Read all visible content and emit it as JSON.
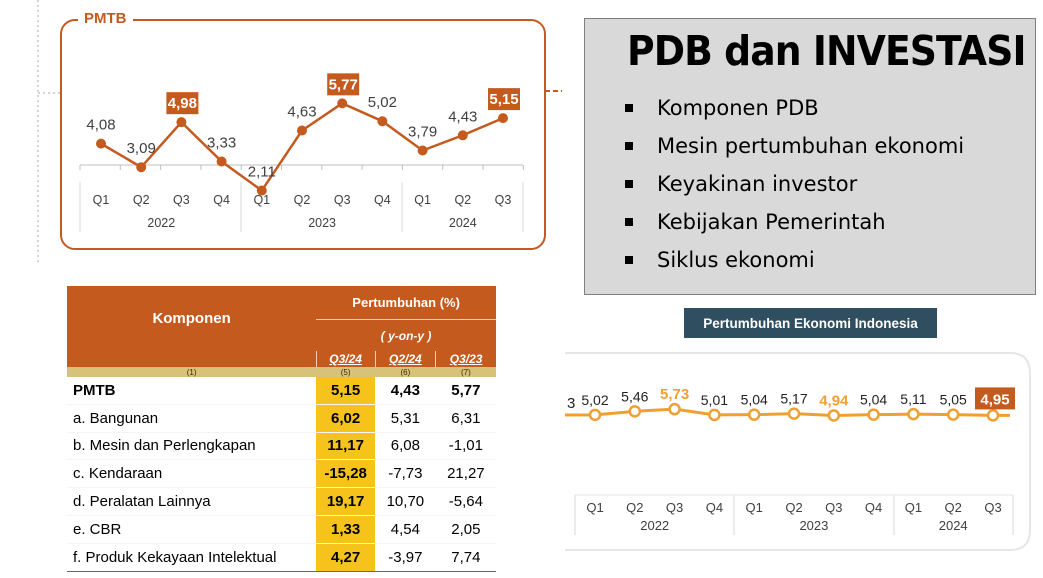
{
  "slide": {
    "title": "PDB dan INVESTASI",
    "bullets": [
      "Komponen PDB",
      "Mesin pertumbuhan ekonomi",
      "Keyakinan investor",
      "Kebijakan Pemerintah",
      "Siklus ekonomi"
    ]
  },
  "colors": {
    "orange": "#c55a1f",
    "growth_orange": "#f0a030",
    "highlight_yellow": "#f6c21c",
    "badge_navy": "#2f4e5f"
  },
  "chart_data": [
    {
      "type": "line",
      "title": "PMTB",
      "categories": [
        "Q1",
        "Q2",
        "Q3",
        "Q4",
        "Q1",
        "Q2",
        "Q3",
        "Q4",
        "Q1",
        "Q2",
        "Q3"
      ],
      "year_groups": [
        {
          "label": "2022",
          "count": 4
        },
        {
          "label": "2023",
          "count": 4
        },
        {
          "label": "2024",
          "count": 3
        }
      ],
      "series": [
        {
          "values": [
            4.08,
            3.09,
            4.98,
            3.33,
            2.11,
            4.63,
            5.77,
            5.02,
            3.79,
            4.43,
            5.15
          ]
        }
      ],
      "labels": [
        "4,08",
        "3,09",
        "4,98",
        "3,33",
        "2,11",
        "4,63",
        "5,77",
        "5,02",
        "3,79",
        "4,43",
        "5,15"
      ],
      "highlighted": [
        2,
        6,
        10
      ]
    },
    {
      "type": "line",
      "title": "Pertumbuhan Ekonomi Indonesia",
      "categories": [
        "Q1",
        "Q2",
        "Q3",
        "Q4",
        "Q1",
        "Q2",
        "Q3",
        "Q4",
        "Q1",
        "Q2",
        "Q3"
      ],
      "year_groups": [
        {
          "label": "2022",
          "count": 4
        },
        {
          "label": "2023",
          "count": 4
        },
        {
          "label": "2024",
          "count": 3
        }
      ],
      "series": [
        {
          "values": [
            5.02,
            5.46,
            5.73,
            5.01,
            5.04,
            5.17,
            4.94,
            5.04,
            5.11,
            5.05,
            4.95
          ]
        }
      ],
      "labels": [
        "5,02",
        "5,46",
        "5,73",
        "5,01",
        "5,04",
        "5,17",
        "4,94",
        "5,04",
        "5,11",
        "5,05",
        "4,95"
      ],
      "cut_off_label": "3",
      "highlighted_text": [
        2,
        6
      ],
      "boxed": [
        10
      ]
    },
    {
      "type": "table",
      "header": {
        "component": "Komponen",
        "growth": "Pertumbuhan (%)",
        "yoy": "( y-on-y )",
        "periods": [
          "Q3/24",
          "Q2/24",
          "Q3/23"
        ],
        "codes": [
          "(1)",
          "(5)",
          "(6)",
          "(7)"
        ]
      },
      "rows": [
        {
          "name": "PMTB",
          "values": [
            "5,15",
            "4,43",
            "5,77"
          ]
        },
        {
          "name": "a. Bangunan",
          "values": [
            "6,02",
            "5,31",
            "6,31"
          ]
        },
        {
          "name": "b. Mesin dan Perlengkapan",
          "values": [
            "11,17",
            "6,08",
            "-1,01"
          ]
        },
        {
          "name": "c. Kendaraan",
          "values": [
            "-15,28",
            "-7,73",
            "21,27"
          ]
        },
        {
          "name": "d. Peralatan Lainnya",
          "values": [
            "19,17",
            "10,70",
            "-5,64"
          ]
        },
        {
          "name": "e. CBR",
          "values": [
            "1,33",
            "4,54",
            "2,05"
          ]
        },
        {
          "name": "f. Produk Kekayaan Intelektual",
          "values": [
            "4,27",
            "-3,97",
            "7,74"
          ]
        }
      ]
    }
  ]
}
